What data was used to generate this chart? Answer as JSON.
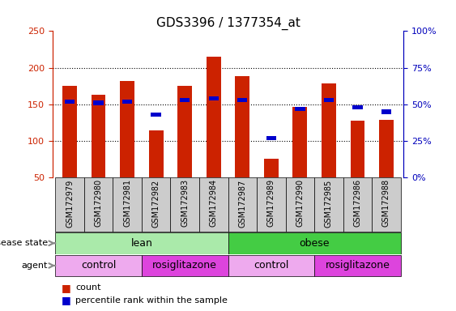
{
  "title": "GDS3396 / 1377354_at",
  "samples": [
    "GSM172979",
    "GSM172980",
    "GSM172981",
    "GSM172982",
    "GSM172983",
    "GSM172984",
    "GSM172987",
    "GSM172989",
    "GSM172990",
    "GSM172985",
    "GSM172986",
    "GSM172988"
  ],
  "count_values": [
    175,
    163,
    182,
    114,
    175,
    215,
    188,
    76,
    147,
    179,
    128,
    129
  ],
  "percentile_values": [
    52,
    51,
    52,
    43,
    53,
    54,
    53,
    27,
    47,
    53,
    48,
    45
  ],
  "ylim_left": [
    50,
    250
  ],
  "ylim_right": [
    0,
    100
  ],
  "yticks_left": [
    50,
    100,
    150,
    200,
    250
  ],
  "yticks_right": [
    0,
    25,
    50,
    75,
    100
  ],
  "ytick_labels_right": [
    "0%",
    "25%",
    "50%",
    "75%",
    "100%"
  ],
  "bar_color": "#CC2200",
  "percentile_color": "#0000CC",
  "bar_width": 0.5,
  "percentile_bar_width": 0.35,
  "percentile_bar_height": 6,
  "disease_state_groups": [
    {
      "label": "lean",
      "start": 0,
      "end": 6,
      "color": "#AAEAAA"
    },
    {
      "label": "obese",
      "start": 6,
      "end": 12,
      "color": "#44CC44"
    }
  ],
  "agent_groups": [
    {
      "label": "control",
      "start": 0,
      "end": 3,
      "color": "#EEAAEE"
    },
    {
      "label": "rosiglitazone",
      "start": 3,
      "end": 6,
      "color": "#DD44DD"
    },
    {
      "label": "control",
      "start": 6,
      "end": 9,
      "color": "#EEAAEE"
    },
    {
      "label": "rosiglitazone",
      "start": 9,
      "end": 12,
      "color": "#DD44DD"
    }
  ],
  "legend_count_label": "count",
  "legend_percentile_label": "percentile rank within the sample",
  "disease_state_label": "disease state",
  "agent_label": "agent",
  "axis_color_left": "#CC2200",
  "axis_color_right": "#0000BB",
  "xtick_bg_color": "#CCCCCC",
  "grid_color": "#000000"
}
